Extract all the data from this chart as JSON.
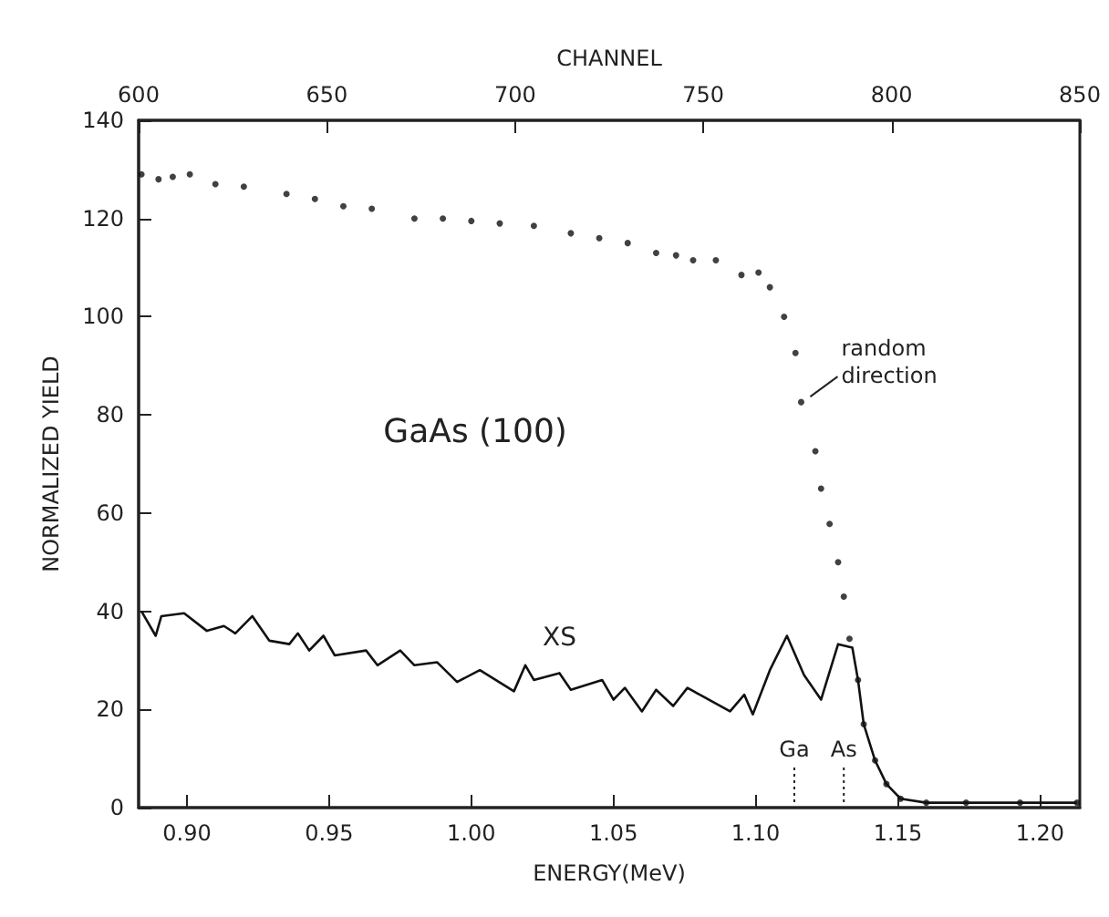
{
  "chart_data": {
    "type": "line",
    "xlabel": "ENERGY(MeV)",
    "ylabel": "NORMALIZED YIELD",
    "x2label": "CHANNEL",
    "xlim": [
      0.883,
      1.214
    ],
    "xticks": [
      {
        "value": 0.9,
        "label": "0.90"
      },
      {
        "value": 0.95,
        "label": "0.95"
      },
      {
        "value": 1.0,
        "label": "1.00"
      },
      {
        "value": 1.05,
        "label": "1.05"
      },
      {
        "value": 1.1,
        "label": "1.10"
      },
      {
        "value": 1.15,
        "label": "1.15"
      },
      {
        "value": 1.2,
        "label": "1.20"
      }
    ],
    "x2lim": [
      600,
      850
    ],
    "x2ticks": [
      600,
      650,
      700,
      750,
      800,
      850
    ],
    "ylim": [
      0,
      140
    ],
    "yticks": [
      0,
      20,
      40,
      60,
      80,
      100,
      120,
      140
    ],
    "grid": false,
    "ref_lines": [
      {
        "axis": "x",
        "value": 1.1136,
        "label": "Ga",
        "line_style": "dotted"
      },
      {
        "axis": "x",
        "value": 1.131,
        "label": "As",
        "line_style": "dotted"
      }
    ],
    "series": [
      {
        "name": "random direction",
        "type": "scatter",
        "marker": "circle",
        "color": "#111111",
        "x": [
          0.884,
          0.89,
          0.895,
          0.901,
          0.91,
          0.92,
          0.935,
          0.945,
          0.955,
          0.965,
          0.98,
          0.99,
          1.0,
          1.01,
          1.022,
          1.035,
          1.045,
          1.055,
          1.065,
          1.072,
          1.078,
          1.086,
          1.095,
          1.101,
          1.105,
          1.11,
          1.114,
          1.116,
          1.121,
          1.123,
          1.126,
          1.129,
          1.131,
          1.133,
          1.136,
          1.138,
          1.142,
          1.146,
          1.151,
          1.16,
          1.174,
          1.193,
          1.213
        ],
        "values": [
          129,
          128,
          128.5,
          129,
          127,
          126.5,
          125,
          124,
          122.5,
          122,
          120,
          120,
          119.5,
          119,
          118.5,
          117,
          116,
          115,
          113,
          112.5,
          111.5,
          111.5,
          108.5,
          109,
          106,
          100,
          92.6,
          82.6,
          72.6,
          65,
          57.8,
          50,
          43,
          34.4,
          26,
          17,
          9.6,
          4.8,
          1.8,
          1,
          1,
          1,
          1
        ]
      },
      {
        "name": "XS",
        "marker": "none",
        "line_style": "solid",
        "color": "#111111",
        "x": [
          0.884,
          0.889,
          0.891,
          0.899,
          0.907,
          0.913,
          0.917,
          0.923,
          0.929,
          0.936,
          0.939,
          0.943,
          0.948,
          0.952,
          0.963,
          0.967,
          0.975,
          0.98,
          0.988,
          0.995,
          1.003,
          1.015,
          1.019,
          1.022,
          1.031,
          1.035,
          1.046,
          1.05,
          1.054,
          1.06,
          1.065,
          1.071,
          1.076,
          1.091,
          1.096,
          1.099,
          1.105,
          1.111,
          1.117,
          1.123,
          1.129,
          1.134,
          1.136,
          1.138,
          1.142,
          1.146,
          1.151,
          1.16,
          1.213
        ],
        "values": [
          40,
          35,
          39,
          39.6,
          36,
          37,
          35.5,
          39,
          34,
          33.3,
          35.5,
          32,
          35,
          31,
          32,
          29,
          32,
          29,
          29.6,
          25.6,
          28,
          23.7,
          29,
          26,
          27.4,
          24,
          26,
          22,
          24.4,
          19.6,
          24,
          20.7,
          24.4,
          19.6,
          23,
          19,
          28,
          35,
          27,
          22,
          33.3,
          32.6,
          26,
          17,
          9.6,
          4.8,
          1.8,
          1,
          1
        ]
      }
    ],
    "annotations": [
      "GaAs (100)"
    ]
  }
}
